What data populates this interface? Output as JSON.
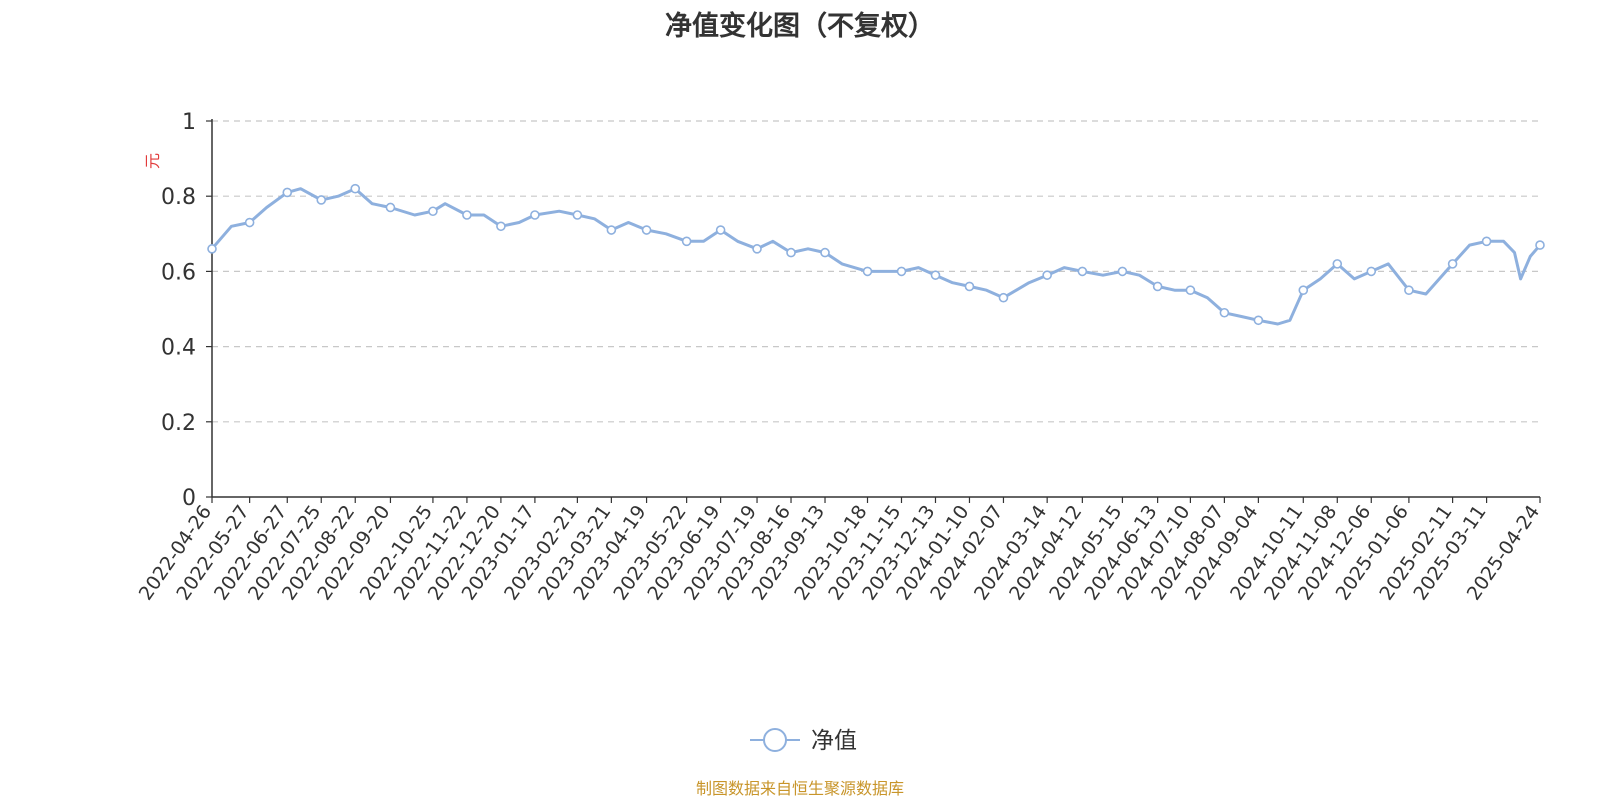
{
  "chart_data": {
    "type": "line",
    "title": "净值变化图（不复权）",
    "ylabel": "元",
    "ylim": [
      0,
      1
    ],
    "yticks": [
      "0",
      "0.2",
      "0.4",
      "0.6",
      "0.8",
      "1"
    ],
    "grid": true,
    "legend_position": "bottom-center",
    "x_tick_labels": [
      "2022-04-26",
      "2022-05-27",
      "2022-06-27",
      "2022-07-25",
      "2022-08-22",
      "2022-09-20",
      "2022-10-25",
      "2022-11-22",
      "2022-12-20",
      "2023-01-17",
      "2023-02-21",
      "2023-03-21",
      "2023-04-19",
      "2023-05-22",
      "2023-06-19",
      "2023-07-19",
      "2023-08-16",
      "2023-09-13",
      "2023-10-18",
      "2023-11-15",
      "2023-12-13",
      "2024-01-10",
      "2024-02-07",
      "2024-03-14",
      "2024-04-12",
      "2024-05-15",
      "2024-06-13",
      "2024-07-10",
      "2024-08-07",
      "2024-09-04",
      "2024-10-11",
      "2024-11-08",
      "2024-12-06",
      "2025-01-06",
      "2025-02-11",
      "2025-03-11",
      "2025-04-24"
    ],
    "series": [
      {
        "name": "净值",
        "color": "#8eb0de",
        "x": [
          "2022-04-26",
          "2022-05-12",
          "2022-05-27",
          "2022-06-10",
          "2022-06-27",
          "2022-07-08",
          "2022-07-25",
          "2022-08-08",
          "2022-08-22",
          "2022-09-05",
          "2022-09-20",
          "2022-10-10",
          "2022-10-25",
          "2022-11-04",
          "2022-11-22",
          "2022-12-06",
          "2022-12-20",
          "2023-01-04",
          "2023-01-17",
          "2023-02-06",
          "2023-02-21",
          "2023-03-07",
          "2023-03-21",
          "2023-04-04",
          "2023-04-19",
          "2023-05-05",
          "2023-05-22",
          "2023-06-05",
          "2023-06-19",
          "2023-07-03",
          "2023-07-19",
          "2023-08-01",
          "2023-08-16",
          "2023-08-30",
          "2023-09-13",
          "2023-09-27",
          "2023-10-18",
          "2023-11-01",
          "2023-11-15",
          "2023-11-29",
          "2023-12-13",
          "2023-12-27",
          "2024-01-10",
          "2024-01-24",
          "2024-02-07",
          "2024-02-28",
          "2024-03-14",
          "2024-03-28",
          "2024-04-12",
          "2024-04-29",
          "2024-05-15",
          "2024-05-29",
          "2024-06-13",
          "2024-06-27",
          "2024-07-10",
          "2024-07-24",
          "2024-08-07",
          "2024-08-21",
          "2024-09-04",
          "2024-09-20",
          "2024-09-30",
          "2024-10-11",
          "2024-10-25",
          "2024-11-08",
          "2024-11-22",
          "2024-12-06",
          "2024-12-20",
          "2025-01-06",
          "2025-01-20",
          "2025-02-11",
          "2025-02-25",
          "2025-03-11",
          "2025-03-25",
          "2025-04-03",
          "2025-04-08",
          "2025-04-16",
          "2025-04-24"
        ],
        "values": [
          0.66,
          0.72,
          0.73,
          0.77,
          0.81,
          0.82,
          0.79,
          0.8,
          0.82,
          0.78,
          0.77,
          0.75,
          0.76,
          0.78,
          0.75,
          0.75,
          0.72,
          0.73,
          0.75,
          0.76,
          0.75,
          0.74,
          0.71,
          0.73,
          0.71,
          0.7,
          0.68,
          0.68,
          0.71,
          0.68,
          0.66,
          0.68,
          0.65,
          0.66,
          0.65,
          0.62,
          0.6,
          0.6,
          0.6,
          0.61,
          0.59,
          0.57,
          0.56,
          0.55,
          0.53,
          0.57,
          0.59,
          0.61,
          0.6,
          0.59,
          0.6,
          0.59,
          0.56,
          0.55,
          0.55,
          0.53,
          0.49,
          0.48,
          0.47,
          0.46,
          0.47,
          0.55,
          0.58,
          0.62,
          0.58,
          0.6,
          0.62,
          0.55,
          0.54,
          0.62,
          0.67,
          0.68,
          0.68,
          0.65,
          0.58,
          0.64,
          0.67
        ]
      }
    ],
    "legend_label": "净值",
    "source_note": "制图数据来自恒生聚源数据库"
  }
}
